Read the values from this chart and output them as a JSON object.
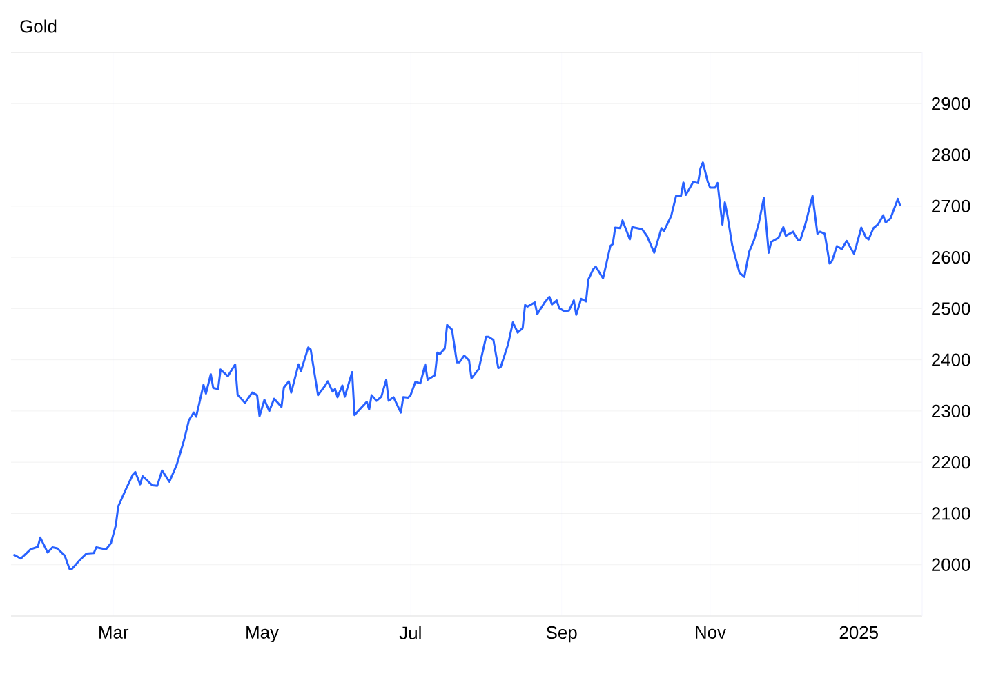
{
  "chart_data": {
    "type": "line",
    "title": "Gold",
    "color": "#2962ff",
    "grid": true,
    "xlim": [
      "2024-01-19",
      "2025-01-27"
    ],
    "ylim": [
      1900,
      3000
    ],
    "xticks": [
      {
        "value": "2024-03-01",
        "label": "Mar"
      },
      {
        "value": "2024-05-01",
        "label": "May"
      },
      {
        "value": "2024-07-01",
        "label": "Jul"
      },
      {
        "value": "2024-09-01",
        "label": "Sep"
      },
      {
        "value": "2024-11-01",
        "label": "Nov"
      },
      {
        "value": "2025-01-01",
        "label": "2025"
      }
    ],
    "yticks": [
      2000,
      2100,
      2200,
      2300,
      2400,
      2500,
      2600,
      2700,
      2800,
      2900
    ],
    "x": [
      "2024-01-20",
      "2024-01-23",
      "2024-01-27",
      "2024-01-30",
      "2024-01-31",
      "2024-02-03",
      "2024-02-05",
      "2024-02-07",
      "2024-02-10",
      "2024-02-12",
      "2024-02-13",
      "2024-02-16",
      "2024-02-19",
      "2024-02-22",
      "2024-02-23",
      "2024-02-27",
      "2024-02-29",
      "2024-03-02",
      "2024-03-03",
      "2024-03-06",
      "2024-03-09",
      "2024-03-10",
      "2024-03-12",
      "2024-03-13",
      "2024-03-17",
      "2024-03-19",
      "2024-03-21",
      "2024-03-24",
      "2024-03-27",
      "2024-03-30",
      "2024-04-01",
      "2024-04-03",
      "2024-04-04",
      "2024-04-07",
      "2024-04-08",
      "2024-04-10",
      "2024-04-11",
      "2024-04-13",
      "2024-04-14",
      "2024-04-17",
      "2024-04-20",
      "2024-04-21",
      "2024-04-24",
      "2024-04-27",
      "2024-04-29",
      "2024-04-30",
      "2024-05-02",
      "2024-05-04",
      "2024-05-06",
      "2024-05-09",
      "2024-05-10",
      "2024-05-12",
      "2024-05-13",
      "2024-05-16",
      "2024-05-17",
      "2024-05-20",
      "2024-05-21",
      "2024-05-24",
      "2024-05-27",
      "2024-05-28",
      "2024-05-30",
      "2024-05-31",
      "2024-06-01",
      "2024-06-03",
      "2024-06-04",
      "2024-06-07",
      "2024-06-08",
      "2024-06-13",
      "2024-06-14",
      "2024-06-15",
      "2024-06-17",
      "2024-06-19",
      "2024-06-21",
      "2024-06-22",
      "2024-06-24",
      "2024-06-27",
      "2024-06-28",
      "2024-06-30",
      "2024-07-01",
      "2024-07-03",
      "2024-07-05",
      "2024-07-07",
      "2024-07-08",
      "2024-07-11",
      "2024-07-12",
      "2024-07-13",
      "2024-07-15",
      "2024-07-16",
      "2024-07-18",
      "2024-07-20",
      "2024-07-21",
      "2024-07-23",
      "2024-07-25",
      "2024-07-26",
      "2024-07-29",
      "2024-08-01",
      "2024-08-02",
      "2024-08-04",
      "2024-08-06",
      "2024-08-07",
      "2024-08-10",
      "2024-08-12",
      "2024-08-14",
      "2024-08-16",
      "2024-08-17",
      "2024-08-18",
      "2024-08-21",
      "2024-08-22",
      "2024-08-25",
      "2024-08-27",
      "2024-08-28",
      "2024-08-30",
      "2024-08-31",
      "2024-09-02",
      "2024-09-04",
      "2024-09-06",
      "2024-09-07",
      "2024-09-09",
      "2024-09-11",
      "2024-09-12",
      "2024-09-14",
      "2024-09-15",
      "2024-09-18",
      "2024-09-21",
      "2024-09-22",
      "2024-09-23",
      "2024-09-25",
      "2024-09-26",
      "2024-09-29",
      "2024-09-30",
      "2024-10-04",
      "2024-10-06",
      "2024-10-09",
      "2024-10-12",
      "2024-10-13",
      "2024-10-16",
      "2024-10-18",
      "2024-10-20",
      "2024-10-21",
      "2024-10-22",
      "2024-10-25",
      "2024-10-27",
      "2024-10-28",
      "2024-10-29",
      "2024-10-31",
      "2024-11-01",
      "2024-11-03",
      "2024-11-04",
      "2024-11-06",
      "2024-11-07",
      "2024-11-08",
      "2024-11-10",
      "2024-11-13",
      "2024-11-15",
      "2024-11-17",
      "2024-11-19",
      "2024-11-21",
      "2024-11-23",
      "2024-11-25",
      "2024-11-26",
      "2024-11-29",
      "2024-12-01",
      "2024-12-02",
      "2024-12-05",
      "2024-12-07",
      "2024-12-08",
      "2024-12-10",
      "2024-12-13",
      "2024-12-15",
      "2024-12-16",
      "2024-12-18",
      "2024-12-20",
      "2024-12-21",
      "2024-12-23",
      "2024-12-25",
      "2024-12-27",
      "2024-12-30",
      "2024-12-31",
      "2025-01-02",
      "2025-01-04",
      "2025-01-05",
      "2025-01-07",
      "2025-01-09",
      "2025-01-11",
      "2025-01-12",
      "2025-01-14",
      "2025-01-17",
      "2025-01-18"
    ],
    "values": [
      2020,
      2012,
      2030,
      2035,
      2053,
      2024,
      2034,
      2032,
      2018,
      1992,
      1992,
      2008,
      2022,
      2023,
      2034,
      2030,
      2042,
      2077,
      2114,
      2146,
      2176,
      2181,
      2157,
      2173,
      2155,
      2154,
      2184,
      2162,
      2195,
      2243,
      2282,
      2297,
      2289,
      2351,
      2334,
      2372,
      2345,
      2343,
      2381,
      2368,
      2391,
      2332,
      2316,
      2336,
      2331,
      2290,
      2322,
      2300,
      2324,
      2308,
      2346,
      2358,
      2336,
      2391,
      2378,
      2424,
      2420,
      2331,
      2350,
      2358,
      2338,
      2343,
      2327,
      2350,
      2328,
      2376,
      2292,
      2318,
      2303,
      2331,
      2320,
      2328,
      2361,
      2320,
      2327,
      2297,
      2327,
      2326,
      2331,
      2357,
      2354,
      2391,
      2361,
      2370,
      2414,
      2411,
      2422,
      2468,
      2459,
      2395,
      2395,
      2408,
      2399,
      2364,
      2382,
      2445,
      2445,
      2439,
      2384,
      2386,
      2430,
      2473,
      2453,
      2462,
      2507,
      2504,
      2512,
      2489,
      2512,
      2523,
      2508,
      2516,
      2501,
      2495,
      2496,
      2516,
      2488,
      2519,
      2514,
      2557,
      2577,
      2582,
      2559,
      2622,
      2626,
      2658,
      2657,
      2672,
      2635,
      2659,
      2655,
      2642,
      2609,
      2657,
      2651,
      2681,
      2720,
      2720,
      2746,
      2722,
      2747,
      2745,
      2774,
      2785,
      2747,
      2736,
      2736,
      2745,
      2664,
      2707,
      2684,
      2624,
      2570,
      2562,
      2611,
      2634,
      2668,
      2716,
      2609,
      2630,
      2638,
      2659,
      2642,
      2650,
      2634,
      2634,
      2664,
      2720,
      2646,
      2650,
      2646,
      2588,
      2593,
      2622,
      2616,
      2632,
      2607,
      2623,
      2658,
      2638,
      2635,
      2657,
      2665,
      2682,
      2668,
      2676,
      2714,
      2700
    ]
  }
}
